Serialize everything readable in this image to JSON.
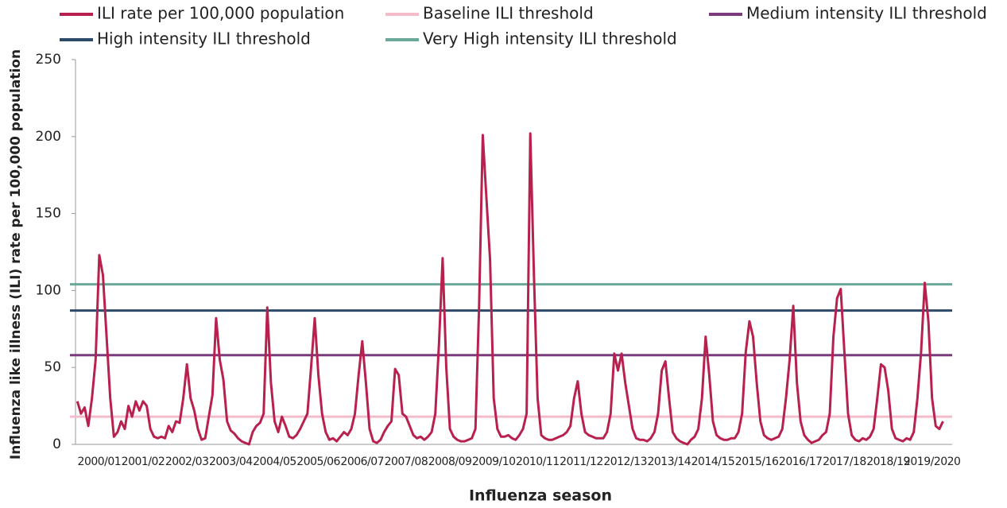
{
  "chart_data": {
    "type": "line",
    "y_label": "Influenza like illness (ILI) rate per 100,000 population",
    "x_label": "Influenza season",
    "ylim": [
      0,
      250
    ],
    "yticks": [
      0,
      50,
      100,
      150,
      200,
      250
    ],
    "categories": [
      null,
      null,
      null,
      null,
      null,
      null,
      "2000/01",
      null,
      null,
      null,
      null,
      null,
      null,
      null,
      null,
      null,
      null,
      null,
      "2001/02",
      null,
      null,
      null,
      null,
      null,
      null,
      null,
      null,
      null,
      null,
      null,
      "2002/03",
      null,
      null,
      null,
      null,
      null,
      null,
      null,
      null,
      null,
      null,
      null,
      "2003/04",
      null,
      null,
      null,
      null,
      null,
      null,
      null,
      null,
      null,
      null,
      null,
      "2004/05",
      null,
      null,
      null,
      null,
      null,
      null,
      null,
      null,
      null,
      null,
      null,
      "2005/06",
      null,
      null,
      null,
      null,
      null,
      null,
      null,
      null,
      null,
      null,
      null,
      "2006/07",
      null,
      null,
      null,
      null,
      null,
      null,
      null,
      null,
      null,
      null,
      null,
      "2007/08",
      null,
      null,
      null,
      null,
      null,
      null,
      null,
      null,
      null,
      null,
      null,
      "2008/09",
      null,
      null,
      null,
      null,
      null,
      null,
      null,
      null,
      null,
      null,
      null,
      "2009/10",
      null,
      null,
      null,
      null,
      null,
      null,
      null,
      null,
      null,
      null,
      null,
      "2010/11",
      null,
      null,
      null,
      null,
      null,
      null,
      null,
      null,
      null,
      null,
      null,
      "2011/12",
      null,
      null,
      null,
      null,
      null,
      null,
      null,
      null,
      null,
      null,
      null,
      "2012/13",
      null,
      null,
      null,
      null,
      null,
      null,
      null,
      null,
      null,
      null,
      null,
      "2013/14",
      null,
      null,
      null,
      null,
      null,
      null,
      null,
      null,
      null,
      null,
      null,
      "2014/15",
      null,
      null,
      null,
      null,
      null,
      null,
      null,
      null,
      null,
      null,
      null,
      "2015/16",
      null,
      null,
      null,
      null,
      null,
      null,
      null,
      null,
      null,
      null,
      null,
      "2016/17",
      null,
      null,
      null,
      null,
      null,
      null,
      null,
      null,
      null,
      null,
      null,
      "2017/18",
      null,
      null,
      null,
      null,
      null,
      null,
      null,
      null,
      null,
      null,
      null,
      "2018/19",
      null,
      null,
      null,
      null,
      null,
      null,
      null,
      null,
      null,
      null,
      null,
      "2019/2020",
      null,
      null,
      null,
      null,
      null
    ],
    "series": [
      {
        "name": "ILI rate per 100,000 population",
        "color": "#b8214e",
        "values": [
          28,
          20,
          24,
          12,
          30,
          55,
          123,
          110,
          70,
          30,
          5,
          8,
          15,
          10,
          25,
          18,
          28,
          22,
          28,
          25,
          10,
          5,
          4,
          5,
          4,
          12,
          8,
          15,
          14,
          30,
          52,
          30,
          22,
          10,
          3,
          4,
          18,
          32,
          82,
          55,
          42,
          15,
          9,
          7,
          4,
          2,
          1,
          0,
          8,
          12,
          14,
          20,
          89,
          40,
          15,
          8,
          18,
          12,
          5,
          4,
          6,
          10,
          15,
          20,
          50,
          82,
          45,
          20,
          8,
          3,
          4,
          2,
          5,
          8,
          6,
          10,
          20,
          45,
          67,
          40,
          10,
          2,
          1,
          3,
          8,
          12,
          15,
          49,
          45,
          20,
          18,
          12,
          6,
          4,
          5,
          3,
          5,
          8,
          20,
          65,
          121,
          50,
          10,
          5,
          3,
          2,
          2,
          3,
          4,
          10,
          90,
          201,
          160,
          120,
          30,
          10,
          5,
          5,
          6,
          4,
          3,
          6,
          10,
          20,
          202,
          110,
          30,
          6,
          4,
          3,
          3,
          4,
          5,
          6,
          8,
          12,
          30,
          41,
          20,
          8,
          6,
          5,
          4,
          4,
          4,
          8,
          20,
          59,
          48,
          59,
          40,
          25,
          10,
          4,
          3,
          3,
          2,
          4,
          8,
          20,
          48,
          54,
          30,
          8,
          4,
          2,
          1,
          0,
          3,
          5,
          10,
          30,
          70,
          45,
          15,
          6,
          4,
          3,
          3,
          4,
          4,
          8,
          20,
          60,
          80,
          70,
          40,
          15,
          6,
          4,
          3,
          4,
          5,
          10,
          30,
          55,
          90,
          40,
          15,
          6,
          3,
          1,
          2,
          3,
          6,
          8,
          20,
          70,
          95,
          101,
          60,
          20,
          6,
          3,
          2,
          4,
          3,
          5,
          10,
          30,
          52,
          50,
          35,
          10,
          4,
          3,
          2,
          4,
          3,
          8,
          30,
          60,
          105,
          80,
          30,
          12,
          10,
          15,
          null,
          null
        ]
      }
    ],
    "thresholds": [
      {
        "name": "Baseline ILI threshold",
        "color": "#f4bccb",
        "value": 18
      },
      {
        "name": "Medium intensity ILI threshold",
        "color": "#7b3a7e",
        "value": 58
      },
      {
        "name": "High intensity ILI threshold",
        "color": "#2d4a6b",
        "value": 87
      },
      {
        "name": "Very High intensity ILI threshold",
        "color": "#6aa89a",
        "value": 104
      }
    ]
  }
}
